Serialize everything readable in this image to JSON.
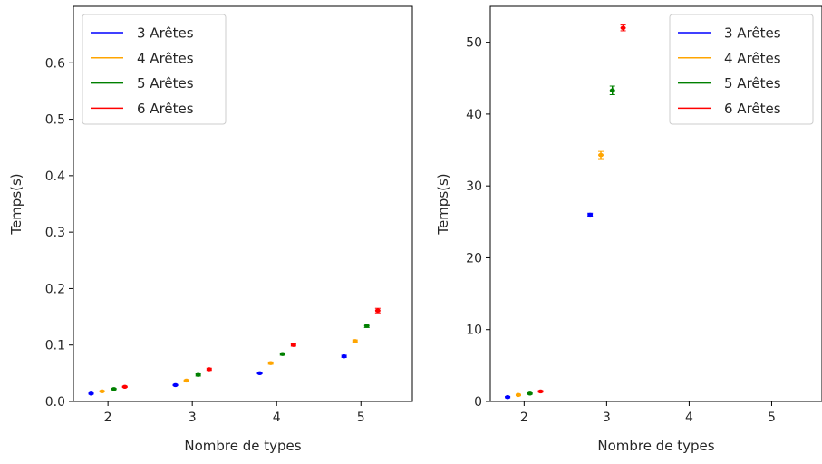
{
  "chart_data": [
    {
      "type": "scatter",
      "xlabel": "Nombre de types",
      "ylabel": "Temps(s)",
      "xlim": [
        1.59,
        5.61
      ],
      "ylim": [
        0,
        0.7
      ],
      "xticks": [
        2,
        3,
        4,
        5
      ],
      "yticks": [
        0.0,
        0.1,
        0.2,
        0.3,
        0.4,
        0.5,
        0.6
      ],
      "ytick_labels": [
        "0.0",
        "0.1",
        "0.2",
        "0.3",
        "0.4",
        "0.5",
        "0.6"
      ],
      "legend_position": "top-left",
      "series": [
        {
          "name": "3 Arêtes",
          "color": "#0000ff",
          "x": [
            1.8,
            2.8,
            3.8,
            4.8
          ],
          "y": [
            0.014,
            0.029,
            0.05,
            0.08
          ],
          "yerr": [
            0.001,
            0.001,
            0.001,
            0.002
          ]
        },
        {
          "name": "4 Arêtes",
          "color": "#ffa500",
          "x": [
            1.93,
            2.93,
            3.93,
            4.93
          ],
          "y": [
            0.018,
            0.037,
            0.068,
            0.107
          ],
          "yerr": [
            0.001,
            0.001,
            0.002,
            0.002
          ]
        },
        {
          "name": "5 Arêtes",
          "color": "#008000",
          "x": [
            2.07,
            3.07,
            4.07,
            5.07
          ],
          "y": [
            0.022,
            0.047,
            0.084,
            0.134
          ],
          "yerr": [
            0.001,
            0.002,
            0.002,
            0.003
          ]
        },
        {
          "name": "6 Arêtes",
          "color": "#ff0000",
          "x": [
            2.2,
            3.2,
            4.2,
            5.2
          ],
          "y": [
            0.026,
            0.057,
            0.1,
            0.161
          ],
          "yerr": [
            0.001,
            0.002,
            0.002,
            0.004
          ]
        }
      ]
    },
    {
      "type": "scatter",
      "xlabel": "Nombre de types",
      "ylabel": "Temps(s)",
      "xlim": [
        1.59,
        5.61
      ],
      "ylim": [
        0,
        55
      ],
      "xticks": [
        2,
        3,
        4,
        5
      ],
      "yticks": [
        0,
        10,
        20,
        30,
        40,
        50
      ],
      "ytick_labels": [
        "0",
        "10",
        "20",
        "30",
        "40",
        "50"
      ],
      "legend_position": "top-right",
      "series": [
        {
          "name": "3 Arêtes",
          "color": "#0000ff",
          "x": [
            1.8,
            2.8
          ],
          "y": [
            0.6,
            26.0
          ],
          "yerr": [
            0.1,
            0.2
          ]
        },
        {
          "name": "4 Arêtes",
          "color": "#ffa500",
          "x": [
            1.93,
            2.93
          ],
          "y": [
            0.9,
            34.3
          ],
          "yerr": [
            0.1,
            0.5
          ]
        },
        {
          "name": "5 Arêtes",
          "color": "#008000",
          "x": [
            2.07,
            3.07
          ],
          "y": [
            1.1,
            43.3
          ],
          "yerr": [
            0.1,
            0.6
          ]
        },
        {
          "name": "6 Arêtes",
          "color": "#ff0000",
          "x": [
            2.2,
            3.2
          ],
          "y": [
            1.4,
            52.0
          ],
          "yerr": [
            0.1,
            0.4
          ]
        }
      ]
    }
  ]
}
